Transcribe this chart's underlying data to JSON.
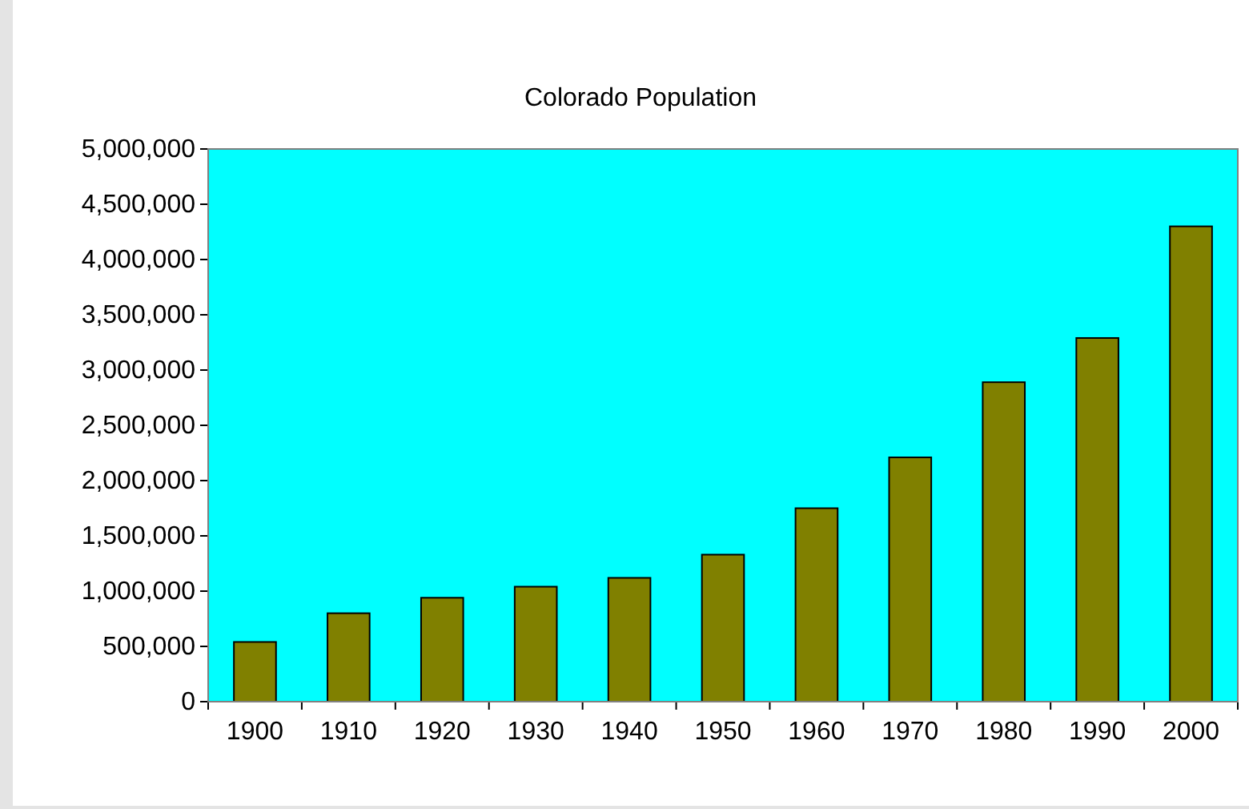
{
  "chart_data": {
    "type": "bar",
    "title": "Colorado Population",
    "categories": [
      "1900",
      "1910",
      "1920",
      "1930",
      "1940",
      "1950",
      "1960",
      "1970",
      "1980",
      "1990",
      "2000"
    ],
    "values": [
      540000,
      800000,
      940000,
      1040000,
      1120000,
      1330000,
      1750000,
      2210000,
      2890000,
      3290000,
      4300000
    ],
    "color": "#808000",
    "ylim": [
      0,
      5000000
    ],
    "yticks": [
      {
        "value": 0,
        "label": "0"
      },
      {
        "value": 500000,
        "label": "500,000"
      },
      {
        "value": 1000000,
        "label": "1,000,000"
      },
      {
        "value": 1500000,
        "label": "1,500,000"
      },
      {
        "value": 2000000,
        "label": "2,000,000"
      },
      {
        "value": 2500000,
        "label": "2,500,000"
      },
      {
        "value": 3000000,
        "label": "3,000,000"
      },
      {
        "value": 3500000,
        "label": "3,500,000"
      },
      {
        "value": 4000000,
        "label": "4,000,000"
      },
      {
        "value": 4500000,
        "label": "4,500,000"
      },
      {
        "value": 5000000,
        "label": "5,000,000"
      }
    ],
    "grid": false
  }
}
